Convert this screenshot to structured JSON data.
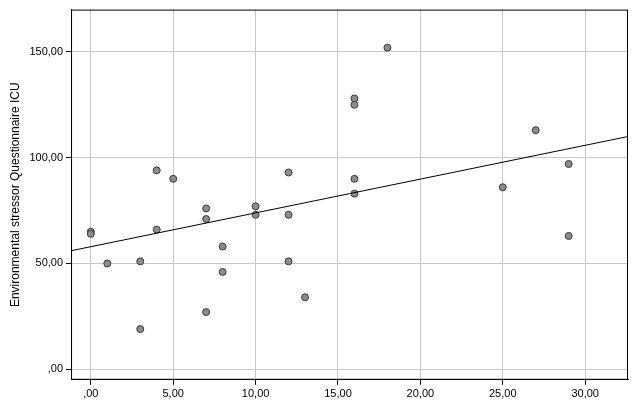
{
  "chart_data": {
    "type": "scatter",
    "y_label": "Environmental stressor Questionnaire ICU",
    "series": [
      {
        "type": "scatter",
        "marker": "circle",
        "color": "#8c8c8c",
        "x": [
          0,
          0,
          1,
          3,
          3,
          4,
          4,
          5,
          7,
          7,
          7,
          8,
          8,
          10,
          10,
          12,
          12,
          12,
          13,
          16,
          16,
          16,
          16,
          18,
          25,
          27,
          29,
          29
        ],
        "values": [
          65,
          64,
          50,
          51,
          19,
          94,
          66,
          90,
          76,
          71,
          27,
          58,
          46,
          77,
          73,
          93,
          73,
          51,
          34,
          128,
          125,
          90,
          83,
          152,
          86,
          113,
          97,
          63
        ]
      },
      {
        "type": "line",
        "line_style": "solid",
        "color": "#000000",
        "x": [
          -1.2,
          32.6
        ],
        "values": [
          56,
          110
        ]
      }
    ],
    "xlim": [
      -1.2,
      32.6
    ],
    "xticks": [
      {
        "value": 0,
        "label": ",00"
      },
      {
        "value": 5,
        "label": "5,00"
      },
      {
        "value": 10,
        "label": "10,00"
      },
      {
        "value": 15,
        "label": "15,00"
      },
      {
        "value": 20,
        "label": "20,00"
      },
      {
        "value": 25,
        "label": "25,00"
      },
      {
        "value": 30,
        "label": "30,00"
      }
    ],
    "ylim": [
      -5,
      170
    ],
    "yticks": [
      {
        "value": 0,
        "label": ",00"
      },
      {
        "value": 50,
        "label": "50,00"
      },
      {
        "value": 100,
        "label": "100,00"
      },
      {
        "value": 150,
        "label": "150,00"
      }
    ],
    "grid": true
  }
}
